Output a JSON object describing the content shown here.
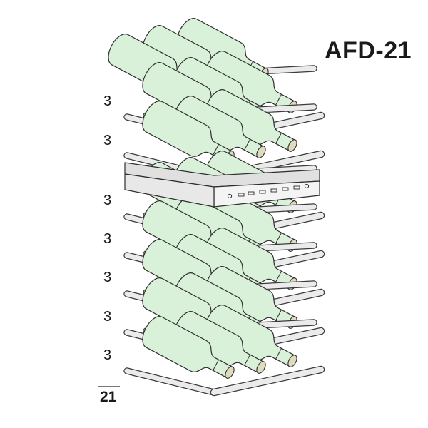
{
  "model": "AFD-21",
  "shelves": [
    {
      "count": "3"
    },
    {
      "count": "3"
    },
    {
      "count": "3"
    },
    {
      "count": "3"
    },
    {
      "count": "3"
    },
    {
      "count": "3"
    },
    {
      "count": "3"
    }
  ],
  "total": "21",
  "colors": {
    "bottle": "#d9f0d9",
    "bottle_stroke": "#2d2d2d",
    "cork": "#dfdcbd",
    "shelf": "#ebebeb",
    "panel": "#e0e0e0"
  }
}
